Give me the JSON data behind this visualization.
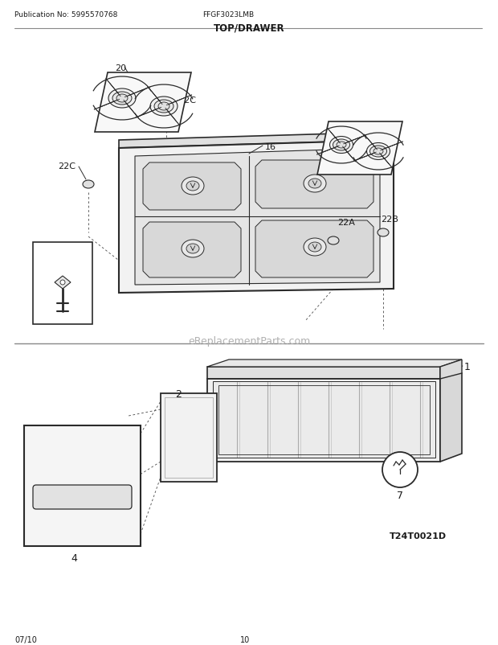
{
  "title_pub": "Publication No: 5995570768",
  "title_model": "FFGF3023LMB",
  "title_section": "TOP/DRAWER",
  "watermark": "eReplacementParts.com",
  "footer_left": "07/10",
  "footer_center": "10",
  "diagram_id": "T24T0021D",
  "bg_color": "#ffffff",
  "line_color": "#2a2a2a",
  "label_color": "#1a1a1a",
  "gray_light": "#e8e8e8",
  "gray_mid": "#cccccc",
  "gray_dark": "#aaaaaa"
}
